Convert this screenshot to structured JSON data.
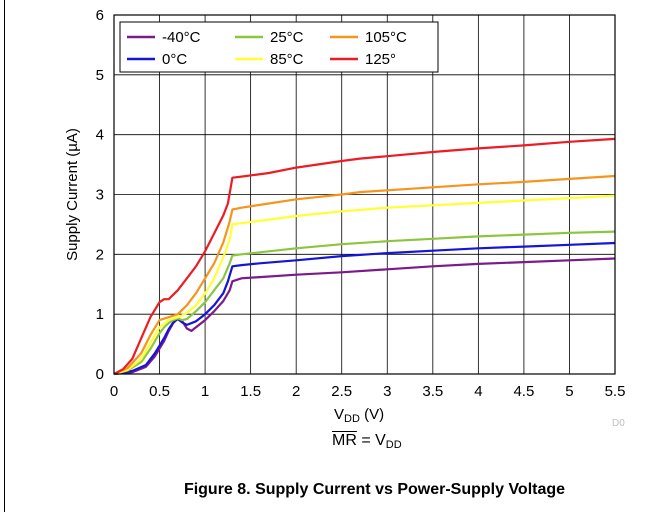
{
  "chart_data": {
    "type": "line",
    "title": "",
    "xlabel": "VDD (V)",
    "xlabel_main": "V",
    "xlabel_sub": "DD",
    "xlabel_unit": " (V)",
    "ylabel": "Supply Current  (µA)",
    "xlim": [
      0,
      5.5
    ],
    "ylim": [
      0,
      6
    ],
    "x_ticks": [
      "0",
      "0.5",
      "1",
      "1.5",
      "2",
      "2.5",
      "3",
      "3.5",
      "4",
      "4.5",
      "5",
      "5.5"
    ],
    "y_ticks": [
      "0",
      "1",
      "2",
      "3",
      "4",
      "5",
      "6"
    ],
    "grid": true,
    "legend_position": "top-left",
    "series": [
      {
        "name": "-40°C",
        "color": "#7a1a8c",
        "points": [
          [
            0,
            0
          ],
          [
            0.2,
            0.03
          ],
          [
            0.35,
            0.12
          ],
          [
            0.45,
            0.3
          ],
          [
            0.55,
            0.55
          ],
          [
            0.6,
            0.72
          ],
          [
            0.65,
            0.85
          ],
          [
            0.7,
            0.93
          ],
          [
            0.75,
            0.88
          ],
          [
            0.8,
            0.76
          ],
          [
            0.85,
            0.72
          ],
          [
            0.9,
            0.78
          ],
          [
            1.0,
            0.9
          ],
          [
            1.1,
            1.05
          ],
          [
            1.2,
            1.22
          ],
          [
            1.27,
            1.4
          ],
          [
            1.3,
            1.55
          ],
          [
            1.4,
            1.6
          ],
          [
            1.6,
            1.62
          ],
          [
            2.0,
            1.66
          ],
          [
            2.5,
            1.7
          ],
          [
            3.0,
            1.75
          ],
          [
            3.5,
            1.8
          ],
          [
            4.0,
            1.84
          ],
          [
            4.5,
            1.87
          ],
          [
            5.0,
            1.9
          ],
          [
            5.5,
            1.93
          ]
        ]
      },
      {
        "name": "0°C",
        "color": "#1515d8",
        "points": [
          [
            0,
            0
          ],
          [
            0.2,
            0.05
          ],
          [
            0.35,
            0.15
          ],
          [
            0.45,
            0.35
          ],
          [
            0.55,
            0.6
          ],
          [
            0.6,
            0.75
          ],
          [
            0.65,
            0.86
          ],
          [
            0.7,
            0.92
          ],
          [
            0.75,
            0.86
          ],
          [
            0.8,
            0.82
          ],
          [
            0.9,
            0.88
          ],
          [
            1.0,
            1.0
          ],
          [
            1.1,
            1.15
          ],
          [
            1.2,
            1.35
          ],
          [
            1.25,
            1.55
          ],
          [
            1.3,
            1.8
          ],
          [
            1.4,
            1.82
          ],
          [
            1.6,
            1.85
          ],
          [
            2.0,
            1.9
          ],
          [
            2.5,
            1.97
          ],
          [
            3.0,
            2.02
          ],
          [
            3.5,
            2.06
          ],
          [
            4.0,
            2.1
          ],
          [
            4.5,
            2.13
          ],
          [
            5.0,
            2.16
          ],
          [
            5.5,
            2.19
          ]
        ]
      },
      {
        "name": "25°C",
        "color": "#8cc63f",
        "points": [
          [
            0,
            0
          ],
          [
            0.15,
            0.06
          ],
          [
            0.3,
            0.2
          ],
          [
            0.4,
            0.42
          ],
          [
            0.5,
            0.68
          ],
          [
            0.55,
            0.78
          ],
          [
            0.6,
            0.85
          ],
          [
            0.65,
            0.9
          ],
          [
            0.7,
            0.93
          ],
          [
            0.75,
            0.9
          ],
          [
            0.8,
            0.92
          ],
          [
            0.9,
            1.05
          ],
          [
            1.0,
            1.2
          ],
          [
            1.1,
            1.4
          ],
          [
            1.2,
            1.6
          ],
          [
            1.27,
            1.85
          ],
          [
            1.3,
            1.98
          ],
          [
            1.4,
            2.0
          ],
          [
            1.7,
            2.05
          ],
          [
            2.0,
            2.1
          ],
          [
            2.5,
            2.17
          ],
          [
            3.0,
            2.22
          ],
          [
            3.5,
            2.26
          ],
          [
            4.0,
            2.3
          ],
          [
            4.5,
            2.33
          ],
          [
            5.0,
            2.36
          ],
          [
            5.5,
            2.38
          ]
        ]
      },
      {
        "name": "85°C",
        "color": "#ffff33",
        "points": [
          [
            0,
            0
          ],
          [
            0.15,
            0.07
          ],
          [
            0.3,
            0.25
          ],
          [
            0.4,
            0.52
          ],
          [
            0.5,
            0.78
          ],
          [
            0.6,
            0.9
          ],
          [
            0.7,
            0.95
          ],
          [
            0.8,
            1.02
          ],
          [
            0.9,
            1.15
          ],
          [
            1.0,
            1.35
          ],
          [
            1.1,
            1.6
          ],
          [
            1.2,
            1.95
          ],
          [
            1.27,
            2.25
          ],
          [
            1.3,
            2.5
          ],
          [
            1.4,
            2.52
          ],
          [
            1.7,
            2.58
          ],
          [
            2.0,
            2.64
          ],
          [
            2.5,
            2.72
          ],
          [
            3.0,
            2.78
          ],
          [
            3.5,
            2.82
          ],
          [
            4.0,
            2.86
          ],
          [
            4.5,
            2.9
          ],
          [
            5.0,
            2.94
          ],
          [
            5.5,
            2.98
          ]
        ]
      },
      {
        "name": "105°C",
        "color": "#f7941d",
        "points": [
          [
            0,
            0
          ],
          [
            0.15,
            0.1
          ],
          [
            0.3,
            0.35
          ],
          [
            0.4,
            0.65
          ],
          [
            0.5,
            0.9
          ],
          [
            0.6,
            0.95
          ],
          [
            0.7,
            1.0
          ],
          [
            0.8,
            1.15
          ],
          [
            0.9,
            1.35
          ],
          [
            1.0,
            1.6
          ],
          [
            1.1,
            1.85
          ],
          [
            1.2,
            2.2
          ],
          [
            1.27,
            2.55
          ],
          [
            1.3,
            2.75
          ],
          [
            1.4,
            2.78
          ],
          [
            1.7,
            2.85
          ],
          [
            2.0,
            2.92
          ],
          [
            2.5,
            3.0
          ],
          [
            2.7,
            3.04
          ],
          [
            3.0,
            3.07
          ],
          [
            3.5,
            3.12
          ],
          [
            4.0,
            3.17
          ],
          [
            4.5,
            3.21
          ],
          [
            5.0,
            3.26
          ],
          [
            5.5,
            3.31
          ]
        ]
      },
      {
        "name": "125°",
        "color": "#ed1c24",
        "points": [
          [
            0,
            0
          ],
          [
            0.1,
            0.08
          ],
          [
            0.2,
            0.25
          ],
          [
            0.3,
            0.6
          ],
          [
            0.4,
            0.95
          ],
          [
            0.5,
            1.2
          ],
          [
            0.55,
            1.25
          ],
          [
            0.6,
            1.25
          ],
          [
            0.7,
            1.4
          ],
          [
            0.8,
            1.6
          ],
          [
            0.9,
            1.8
          ],
          [
            1.0,
            2.05
          ],
          [
            1.1,
            2.35
          ],
          [
            1.2,
            2.65
          ],
          [
            1.25,
            2.85
          ],
          [
            1.3,
            3.28
          ],
          [
            1.4,
            3.3
          ],
          [
            1.7,
            3.36
          ],
          [
            2.0,
            3.45
          ],
          [
            2.5,
            3.56
          ],
          [
            2.7,
            3.6
          ],
          [
            3.0,
            3.64
          ],
          [
            3.5,
            3.71
          ],
          [
            4.0,
            3.77
          ],
          [
            4.5,
            3.82
          ],
          [
            5.0,
            3.88
          ],
          [
            5.5,
            3.93
          ]
        ]
      }
    ]
  },
  "condition": {
    "mr_symbol": "MR",
    "equals": " = V",
    "sub": "DD"
  },
  "doc_id": "D0",
  "caption": "Figure 8. Supply Current vs Power-Supply Voltage"
}
